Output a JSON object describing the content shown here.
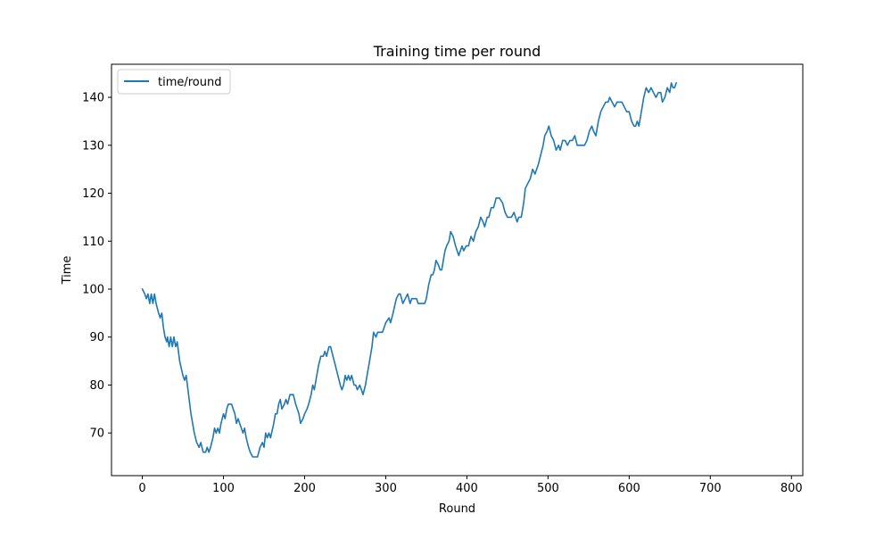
{
  "chart_data": {
    "type": "line",
    "title": "Training time per round",
    "xlabel": "Round",
    "ylabel": "Time",
    "xlim": [
      -38,
      814
    ],
    "ylim": [
      61.1,
      146.9
    ],
    "xticks": [
      0,
      100,
      200,
      300,
      400,
      500,
      600,
      700,
      800
    ],
    "yticks": [
      70,
      80,
      90,
      100,
      110,
      120,
      130,
      140
    ],
    "grid": false,
    "legend": "top-left",
    "line_color": "#1f77b4",
    "series": [
      {
        "name": "time/round",
        "points": [
          [
            0,
            100
          ],
          [
            3,
            99
          ],
          [
            5,
            98
          ],
          [
            7,
            99
          ],
          [
            9,
            97
          ],
          [
            11,
            99
          ],
          [
            13,
            97
          ],
          [
            15,
            99
          ],
          [
            17,
            97
          ],
          [
            20,
            95
          ],
          [
            22,
            94
          ],
          [
            24,
            95
          ],
          [
            26,
            92
          ],
          [
            28,
            90
          ],
          [
            30,
            89
          ],
          [
            31,
            90
          ],
          [
            33,
            88
          ],
          [
            35,
            90
          ],
          [
            37,
            88
          ],
          [
            39,
            90
          ],
          [
            41,
            88
          ],
          [
            43,
            89
          ],
          [
            46,
            85
          ],
          [
            50,
            82
          ],
          [
            52,
            81
          ],
          [
            54,
            82
          ],
          [
            57,
            78
          ],
          [
            60,
            74
          ],
          [
            64,
            70
          ],
          [
            67,
            68
          ],
          [
            70,
            67
          ],
          [
            72,
            68
          ],
          [
            75,
            66
          ],
          [
            78,
            66
          ],
          [
            80,
            67
          ],
          [
            82,
            66
          ],
          [
            84,
            67
          ],
          [
            87,
            69
          ],
          [
            89,
            71
          ],
          [
            91,
            70
          ],
          [
            93,
            71
          ],
          [
            95,
            70
          ],
          [
            97,
            72
          ],
          [
            100,
            74
          ],
          [
            102,
            73
          ],
          [
            104,
            75
          ],
          [
            106,
            76
          ],
          [
            110,
            76
          ],
          [
            112,
            75
          ],
          [
            114,
            74
          ],
          [
            116,
            72
          ],
          [
            118,
            73
          ],
          [
            120,
            72
          ],
          [
            124,
            70
          ],
          [
            126,
            71
          ],
          [
            128,
            69
          ],
          [
            131,
            67
          ],
          [
            133,
            66
          ],
          [
            136,
            65
          ],
          [
            142,
            65
          ],
          [
            145,
            67
          ],
          [
            148,
            68
          ],
          [
            150,
            67
          ],
          [
            152,
            70
          ],
          [
            154,
            69
          ],
          [
            156,
            70
          ],
          [
            158,
            69
          ],
          [
            162,
            72
          ],
          [
            164,
            74
          ],
          [
            166,
            74
          ],
          [
            168,
            76
          ],
          [
            170,
            77
          ],
          [
            172,
            75
          ],
          [
            175,
            76
          ],
          [
            177,
            77
          ],
          [
            179,
            76
          ],
          [
            182,
            78
          ],
          [
            186,
            78
          ],
          [
            189,
            76
          ],
          [
            191,
            75
          ],
          [
            193,
            74
          ],
          [
            195,
            72
          ],
          [
            198,
            73
          ],
          [
            200,
            74
          ],
          [
            203,
            75
          ],
          [
            205,
            76
          ],
          [
            208,
            78
          ],
          [
            210,
            80
          ],
          [
            212,
            79
          ],
          [
            214,
            81
          ],
          [
            217,
            84
          ],
          [
            220,
            86
          ],
          [
            223,
            86
          ],
          [
            225,
            87
          ],
          [
            227,
            86
          ],
          [
            230,
            88
          ],
          [
            232,
            88
          ],
          [
            235,
            86
          ],
          [
            238,
            84
          ],
          [
            241,
            82
          ],
          [
            244,
            80
          ],
          [
            246,
            79
          ],
          [
            248,
            80
          ],
          [
            250,
            82
          ],
          [
            252,
            81
          ],
          [
            254,
            82
          ],
          [
            256,
            81
          ],
          [
            258,
            82
          ],
          [
            261,
            80
          ],
          [
            263,
            80
          ],
          [
            265,
            79
          ],
          [
            268,
            80
          ],
          [
            270,
            79
          ],
          [
            272,
            78
          ],
          [
            275,
            80
          ],
          [
            277,
            82
          ],
          [
            280,
            85
          ],
          [
            283,
            88
          ],
          [
            285,
            91
          ],
          [
            288,
            90
          ],
          [
            290,
            91
          ],
          [
            296,
            91
          ],
          [
            300,
            93
          ],
          [
            304,
            94
          ],
          [
            306,
            93
          ],
          [
            309,
            95
          ],
          [
            313,
            98
          ],
          [
            316,
            99
          ],
          [
            318,
            99
          ],
          [
            321,
            97
          ],
          [
            324,
            98
          ],
          [
            327,
            99
          ],
          [
            330,
            97
          ],
          [
            332,
            98
          ],
          [
            336,
            98
          ],
          [
            338,
            98
          ],
          [
            340,
            97
          ],
          [
            342,
            97
          ],
          [
            348,
            97
          ],
          [
            350,
            98
          ],
          [
            353,
            101
          ],
          [
            356,
            103
          ],
          [
            358,
            103
          ],
          [
            360,
            104
          ],
          [
            362,
            106
          ],
          [
            365,
            105
          ],
          [
            367,
            104
          ],
          [
            369,
            104
          ],
          [
            371,
            106
          ],
          [
            373,
            108
          ],
          [
            375,
            109
          ],
          [
            378,
            110
          ],
          [
            380,
            112
          ],
          [
            383,
            111
          ],
          [
            386,
            109
          ],
          [
            388,
            108
          ],
          [
            390,
            107
          ],
          [
            392,
            108
          ],
          [
            394,
            109
          ],
          [
            396,
            108
          ],
          [
            399,
            109
          ],
          [
            402,
            109
          ],
          [
            405,
            111
          ],
          [
            408,
            110
          ],
          [
            411,
            112
          ],
          [
            414,
            113
          ],
          [
            417,
            115
          ],
          [
            420,
            114
          ],
          [
            422,
            113
          ],
          [
            425,
            115
          ],
          [
            427,
            115
          ],
          [
            430,
            117
          ],
          [
            433,
            117
          ],
          [
            436,
            119
          ],
          [
            440,
            119
          ],
          [
            444,
            118
          ],
          [
            447,
            116
          ],
          [
            450,
            115
          ],
          [
            455,
            115
          ],
          [
            458,
            116
          ],
          [
            460,
            115
          ],
          [
            462,
            114
          ],
          [
            464,
            115
          ],
          [
            467,
            115
          ],
          [
            470,
            118
          ],
          [
            472,
            121
          ],
          [
            475,
            122
          ],
          [
            478,
            123
          ],
          [
            481,
            125
          ],
          [
            484,
            124
          ],
          [
            486,
            125
          ],
          [
            488,
            126
          ],
          [
            491,
            128
          ],
          [
            494,
            130
          ],
          [
            496,
            132
          ],
          [
            499,
            133
          ],
          [
            501,
            134
          ],
          [
            504,
            132
          ],
          [
            507,
            131
          ],
          [
            510,
            129
          ],
          [
            513,
            130
          ],
          [
            515,
            129
          ],
          [
            518,
            131
          ],
          [
            521,
            131
          ],
          [
            524,
            130
          ],
          [
            527,
            131
          ],
          [
            530,
            131
          ],
          [
            533,
            132
          ],
          [
            536,
            130
          ],
          [
            539,
            130
          ],
          [
            545,
            130
          ],
          [
            548,
            131
          ],
          [
            551,
            133
          ],
          [
            554,
            134
          ],
          [
            556,
            133
          ],
          [
            559,
            132
          ],
          [
            562,
            135
          ],
          [
            565,
            137
          ],
          [
            568,
            138
          ],
          [
            571,
            139
          ],
          [
            574,
            139
          ],
          [
            576,
            140
          ],
          [
            579,
            139
          ],
          [
            582,
            138
          ],
          [
            585,
            139
          ],
          [
            591,
            139
          ],
          [
            594,
            138
          ],
          [
            597,
            137
          ],
          [
            600,
            137
          ],
          [
            603,
            135
          ],
          [
            606,
            134
          ],
          [
            608,
            134
          ],
          [
            610,
            135
          ],
          [
            612,
            134
          ],
          [
            615,
            137
          ],
          [
            618,
            140
          ],
          [
            621,
            142
          ],
          [
            624,
            141
          ],
          [
            627,
            142
          ],
          [
            630,
            141
          ],
          [
            633,
            140
          ],
          [
            636,
            141
          ],
          [
            639,
            141
          ],
          [
            641,
            139
          ],
          [
            644,
            140
          ],
          [
            647,
            142
          ],
          [
            650,
            141
          ],
          [
            652,
            143
          ],
          [
            654,
            142
          ],
          [
            656,
            142
          ],
          [
            658,
            143
          ]
        ]
      }
    ]
  }
}
